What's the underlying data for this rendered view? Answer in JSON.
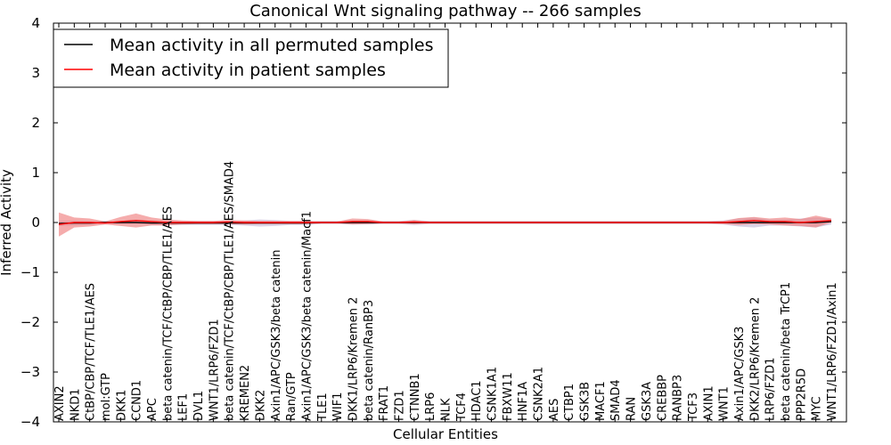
{
  "chart_data": {
    "type": "line",
    "title": "Canonical Wnt signaling pathway -- 266 samples",
    "xlabel": "Cellular Entities",
    "ylabel": "Inferred Activity",
    "ylim": [
      -4,
      4
    ],
    "yticks": [
      "4",
      "3",
      "2",
      "1",
      "0",
      "−1",
      "−2",
      "−3",
      "−4"
    ],
    "ytick_values": [
      4,
      3,
      2,
      1,
      0,
      -1,
      -2,
      -3,
      -4
    ],
    "legend_position": "top-left",
    "categories": [
      "AXIN2",
      "NKD1",
      "CtBP/CBP/TCF/TLE1/AES",
      "mol:GTP",
      "DKK1",
      "CCND1",
      "APC",
      "beta catenin/TCF/CtBP/CBP/TLE1/AES",
      "LEF1",
      "DVL1",
      "WNT1/LRP6/FZD1",
      "beta catenin/TCF/CtBP/CBP/TLE1/AES/SMAD4",
      "KREMEN2",
      "DKK2",
      "Axin1/APC/GSK3/beta catenin",
      "Ran/GTP",
      "Axin1/APC/GSK3/beta catenin/Macf1",
      "TLE1",
      "WIF1",
      "DKK1/LRP6/Kremen 2",
      "beta catenin/RanBP3",
      "FRAT1",
      "FZD1",
      "CTNNB1",
      "LRP6",
      "NLK",
      "TCF4",
      "HDAC1",
      "CSNK1A1",
      "FBXW11",
      "HNF1A",
      "CSNK2A1",
      "AES",
      "CTBP1",
      "GSK3B",
      "MACF1",
      "SMAD4",
      "RAN",
      "GSK3A",
      "CREBBP",
      "RANBP3",
      "TCF3",
      "AXIN1",
      "WNT1",
      "Axin1/APC/GSK3",
      "DKK2/LRP6/Kremen 2",
      "LRP6/FZD1",
      "beta catenin/beta TrCP1",
      "PPP2R5D",
      "MYC",
      "WNT1/LRP6/FZD1/Axin1"
    ],
    "series": [
      {
        "name": "Mean activity in all permuted samples",
        "color": "#000000",
        "band_color": "#b8a8cc",
        "values": [
          -0.02,
          -0.01,
          -0.01,
          0.0,
          0.0,
          0.0,
          -0.01,
          -0.01,
          -0.01,
          -0.01,
          -0.01,
          -0.01,
          -0.01,
          -0.01,
          -0.01,
          -0.01,
          -0.01,
          0.0,
          0.0,
          0.0,
          0.0,
          0.0,
          0.0,
          0.0,
          0.0,
          0.0,
          0.0,
          0.0,
          0.0,
          0.0,
          0.0,
          0.0,
          0.0,
          0.0,
          0.0,
          0.0,
          0.0,
          0.0,
          0.0,
          0.0,
          0.0,
          0.0,
          0.0,
          0.0,
          0.0,
          0.0,
          0.0,
          0.0,
          0.0,
          0.0,
          0.02
        ],
        "band": [
          0.05,
          0.05,
          0.04,
          0.03,
          0.03,
          0.03,
          0.04,
          0.04,
          0.04,
          0.04,
          0.04,
          0.04,
          0.05,
          0.07,
          0.06,
          0.04,
          0.04,
          0.03,
          0.03,
          0.04,
          0.04,
          0.03,
          0.03,
          0.05,
          0.03,
          0.03,
          0.03,
          0.03,
          0.03,
          0.03,
          0.03,
          0.03,
          0.03,
          0.03,
          0.03,
          0.03,
          0.03,
          0.03,
          0.03,
          0.03,
          0.03,
          0.03,
          0.03,
          0.04,
          0.08,
          0.1,
          0.06,
          0.06,
          0.08,
          0.1,
          0.06
        ]
      },
      {
        "name": "Mean activity in patient samples",
        "color": "#ff0000",
        "band_color": "#f08080",
        "values": [
          -0.04,
          0.0,
          0.0,
          -0.01,
          0.02,
          0.04,
          0.02,
          0.0,
          0.0,
          0.0,
          0.0,
          0.01,
          0.0,
          0.0,
          0.0,
          0.0,
          0.0,
          0.0,
          0.0,
          0.02,
          0.02,
          0.0,
          0.0,
          0.01,
          0.0,
          0.0,
          0.0,
          0.0,
          0.0,
          0.0,
          0.0,
          0.0,
          0.0,
          0.0,
          0.0,
          0.0,
          0.0,
          0.0,
          0.0,
          0.0,
          0.0,
          0.0,
          0.0,
          0.0,
          0.02,
          0.04,
          0.02,
          0.02,
          0.0,
          0.02,
          0.04
        ],
        "band": [
          0.24,
          0.1,
          0.08,
          0.03,
          0.09,
          0.14,
          0.08,
          0.06,
          0.04,
          0.03,
          0.03,
          0.04,
          0.04,
          0.03,
          0.03,
          0.03,
          0.03,
          0.02,
          0.02,
          0.06,
          0.05,
          0.02,
          0.02,
          0.04,
          0.02,
          0.02,
          0.02,
          0.02,
          0.02,
          0.02,
          0.02,
          0.02,
          0.02,
          0.02,
          0.02,
          0.02,
          0.02,
          0.02,
          0.02,
          0.02,
          0.02,
          0.02,
          0.02,
          0.03,
          0.07,
          0.07,
          0.06,
          0.08,
          0.07,
          0.12,
          0.04
        ]
      }
    ]
  }
}
